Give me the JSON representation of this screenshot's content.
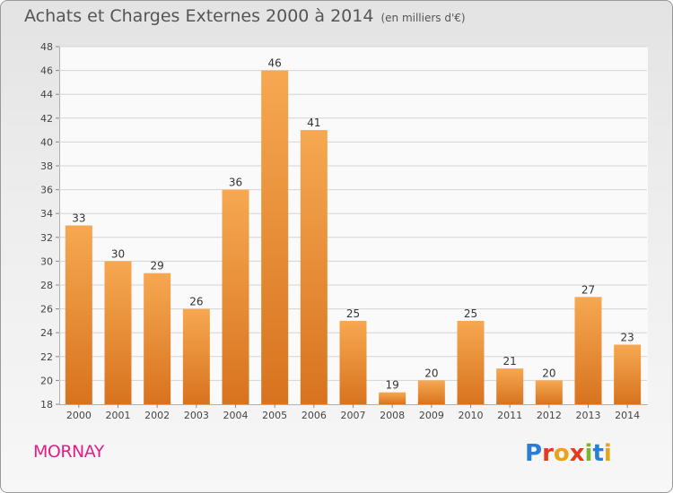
{
  "header": {
    "title": "Achats et Charges Externes 2000 à 2014",
    "unit": "(en milliers d'€)"
  },
  "footer": {
    "commune": "MORNAY",
    "logo_text": "Proxiti",
    "logo_colors": [
      "#2a7fd4",
      "#e23b1f",
      "#e8a317",
      "#e23b1f",
      "#7ab52f",
      "#2a7fd4",
      "#e8a317"
    ]
  },
  "colors": {
    "bar_top": "#f6a851",
    "bar_bottom": "#d8731f",
    "commune": "#e0208a"
  },
  "chart_data": {
    "type": "bar",
    "categories": [
      "2000",
      "2001",
      "2002",
      "2003",
      "2004",
      "2005",
      "2006",
      "2007",
      "2008",
      "2009",
      "2010",
      "2011",
      "2012",
      "2013",
      "2014"
    ],
    "values": [
      33,
      30,
      29,
      26,
      36,
      46,
      41,
      25,
      19,
      20,
      25,
      21,
      20,
      27,
      23
    ],
    "ylim": [
      18,
      48
    ],
    "yticks": [
      18,
      20,
      22,
      24,
      26,
      28,
      30,
      32,
      34,
      36,
      38,
      40,
      42,
      44,
      46,
      48
    ],
    "grid": true,
    "legend": "none"
  }
}
